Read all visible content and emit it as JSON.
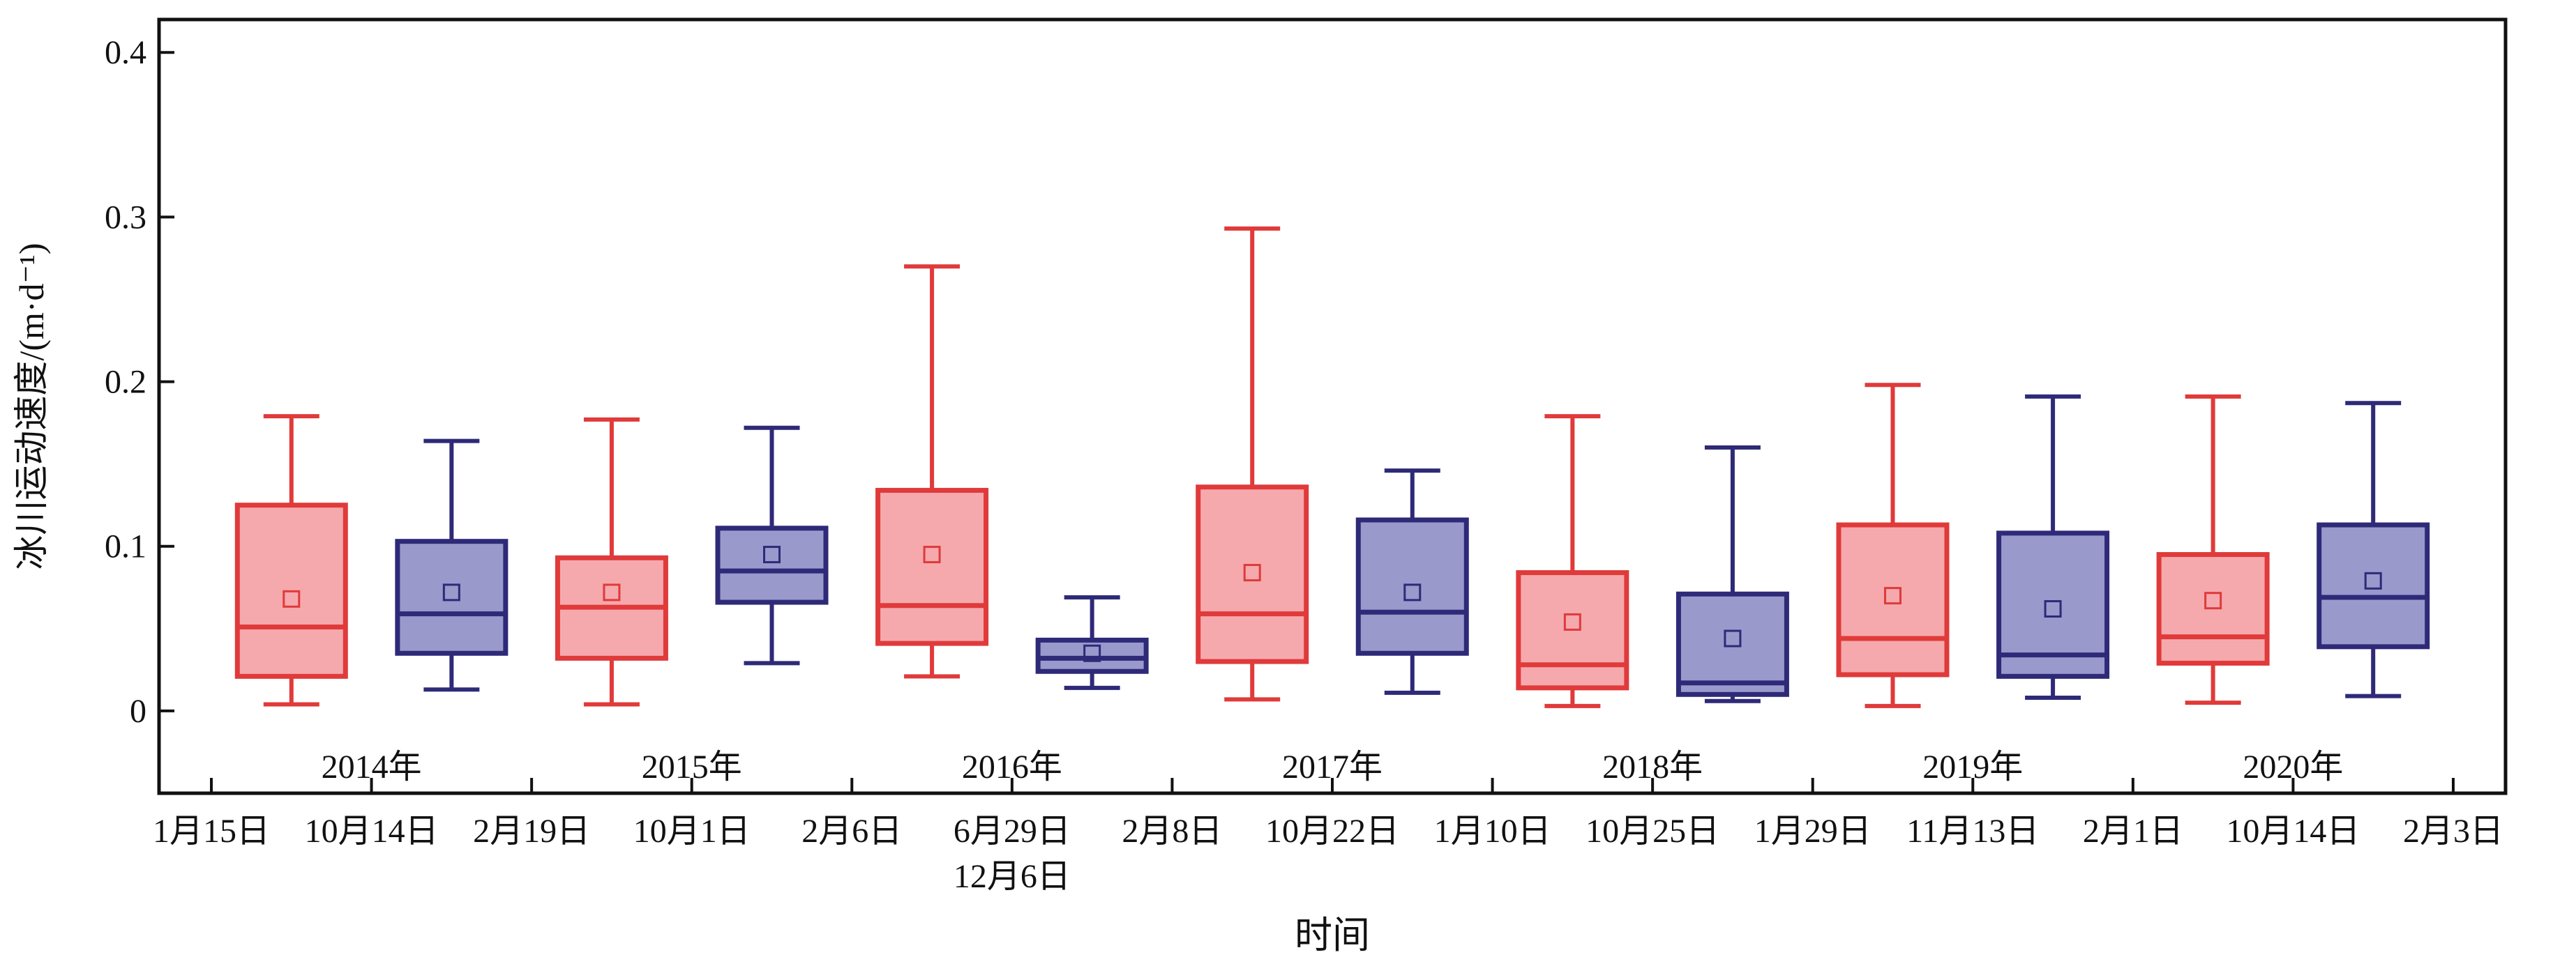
{
  "chart_data": {
    "type": "box",
    "ylabel": "冰川运动速度/(m·d⁻¹)",
    "xlabel": "时间",
    "ylim": [
      -0.05,
      0.42
    ],
    "yticks": [
      "0",
      "0.1",
      "0.2",
      "0.3",
      "0.4"
    ],
    "ytick_values": [
      0,
      0.1,
      0.2,
      0.3,
      0.4
    ],
    "years": [
      "2014年",
      "2015年",
      "2016年",
      "2017年",
      "2018年",
      "2019年",
      "2020年"
    ],
    "date_ticks": [
      "1月15日",
      "10月14日",
      "2月19日",
      "10月1日",
      "2月6日",
      "6月29日",
      "2月8日",
      "10月22日",
      "1月10日",
      "10月25日",
      "1月29日",
      "11月13日",
      "2月1日",
      "10月14日",
      "2月3日"
    ],
    "date_tick_extra": "12月6日",
    "colors": {
      "red_stroke": "#e03a3a",
      "red_fill": "#f5a9ad",
      "blue_stroke": "#2e2a78",
      "blue_fill": "#9a99cc"
    },
    "boxes": [
      {
        "year": "2014年",
        "color": "red",
        "whisker_low": 0.004,
        "q1": 0.021,
        "median": 0.051,
        "q3": 0.125,
        "whisker_high": 0.179,
        "mean": 0.068
      },
      {
        "year": "2014年",
        "color": "blue",
        "whisker_low": 0.013,
        "q1": 0.035,
        "median": 0.059,
        "q3": 0.103,
        "whisker_high": 0.164,
        "mean": 0.072
      },
      {
        "year": "2015年",
        "color": "red",
        "whisker_low": 0.004,
        "q1": 0.032,
        "median": 0.063,
        "q3": 0.093,
        "whisker_high": 0.177,
        "mean": 0.072
      },
      {
        "year": "2015年",
        "color": "blue",
        "whisker_low": 0.029,
        "q1": 0.066,
        "median": 0.085,
        "q3": 0.111,
        "whisker_high": 0.172,
        "mean": 0.095
      },
      {
        "year": "2016年",
        "color": "red",
        "whisker_low": 0.021,
        "q1": 0.041,
        "median": 0.064,
        "q3": 0.134,
        "whisker_high": 0.27,
        "mean": 0.095
      },
      {
        "year": "2016年",
        "color": "blue",
        "whisker_low": 0.014,
        "q1": 0.024,
        "median": 0.032,
        "q3": 0.043,
        "whisker_high": 0.069,
        "mean": 0.035
      },
      {
        "year": "2017年",
        "color": "red",
        "whisker_low": 0.007,
        "q1": 0.03,
        "median": 0.059,
        "q3": 0.136,
        "whisker_high": 0.293,
        "mean": 0.084
      },
      {
        "year": "2017年",
        "color": "blue",
        "whisker_low": 0.011,
        "q1": 0.035,
        "median": 0.06,
        "q3": 0.116,
        "whisker_high": 0.146,
        "mean": 0.072
      },
      {
        "year": "2018年",
        "color": "red",
        "whisker_low": 0.003,
        "q1": 0.014,
        "median": 0.028,
        "q3": 0.084,
        "whisker_high": 0.179,
        "mean": 0.054
      },
      {
        "year": "2018年",
        "color": "blue",
        "whisker_low": 0.006,
        "q1": 0.01,
        "median": 0.017,
        "q3": 0.071,
        "whisker_high": 0.16,
        "mean": 0.044
      },
      {
        "year": "2019年",
        "color": "red",
        "whisker_low": 0.003,
        "q1": 0.022,
        "median": 0.044,
        "q3": 0.113,
        "whisker_high": 0.198,
        "mean": 0.07
      },
      {
        "year": "2019年",
        "color": "blue",
        "whisker_low": 0.008,
        "q1": 0.021,
        "median": 0.034,
        "q3": 0.108,
        "whisker_high": 0.191,
        "mean": 0.062
      },
      {
        "year": "2020年",
        "color": "red",
        "whisker_low": 0.005,
        "q1": 0.029,
        "median": 0.045,
        "q3": 0.095,
        "whisker_high": 0.191,
        "mean": 0.067
      },
      {
        "year": "2020年",
        "color": "blue",
        "whisker_low": 0.009,
        "q1": 0.039,
        "median": 0.069,
        "q3": 0.113,
        "whisker_high": 0.187,
        "mean": 0.079
      }
    ]
  }
}
